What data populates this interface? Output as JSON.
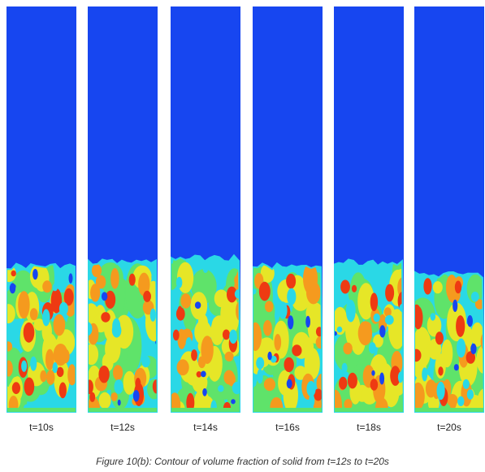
{
  "figure": {
    "caption": "Figure 10(b): Contour of volume fraction of solid from t=12s to t=20s",
    "panels": [
      {
        "label": "t=10s",
        "bed_height_fraction": 0.36
      },
      {
        "label": "t=12s",
        "bed_height_fraction": 0.37
      },
      {
        "label": "t=14s",
        "bed_height_fraction": 0.38
      },
      {
        "label": "t=16s",
        "bed_height_fraction": 0.36
      },
      {
        "label": "t=18s",
        "bed_height_fraction": 0.37
      },
      {
        "label": "t=20s",
        "bed_height_fraction": 0.34
      }
    ],
    "colors": {
      "background": "#1746f0",
      "cyan": "#2ad8e6",
      "green": "#5fe36a",
      "yellow": "#e6e627",
      "orange": "#f59a1e",
      "red": "#ee3a12"
    }
  }
}
